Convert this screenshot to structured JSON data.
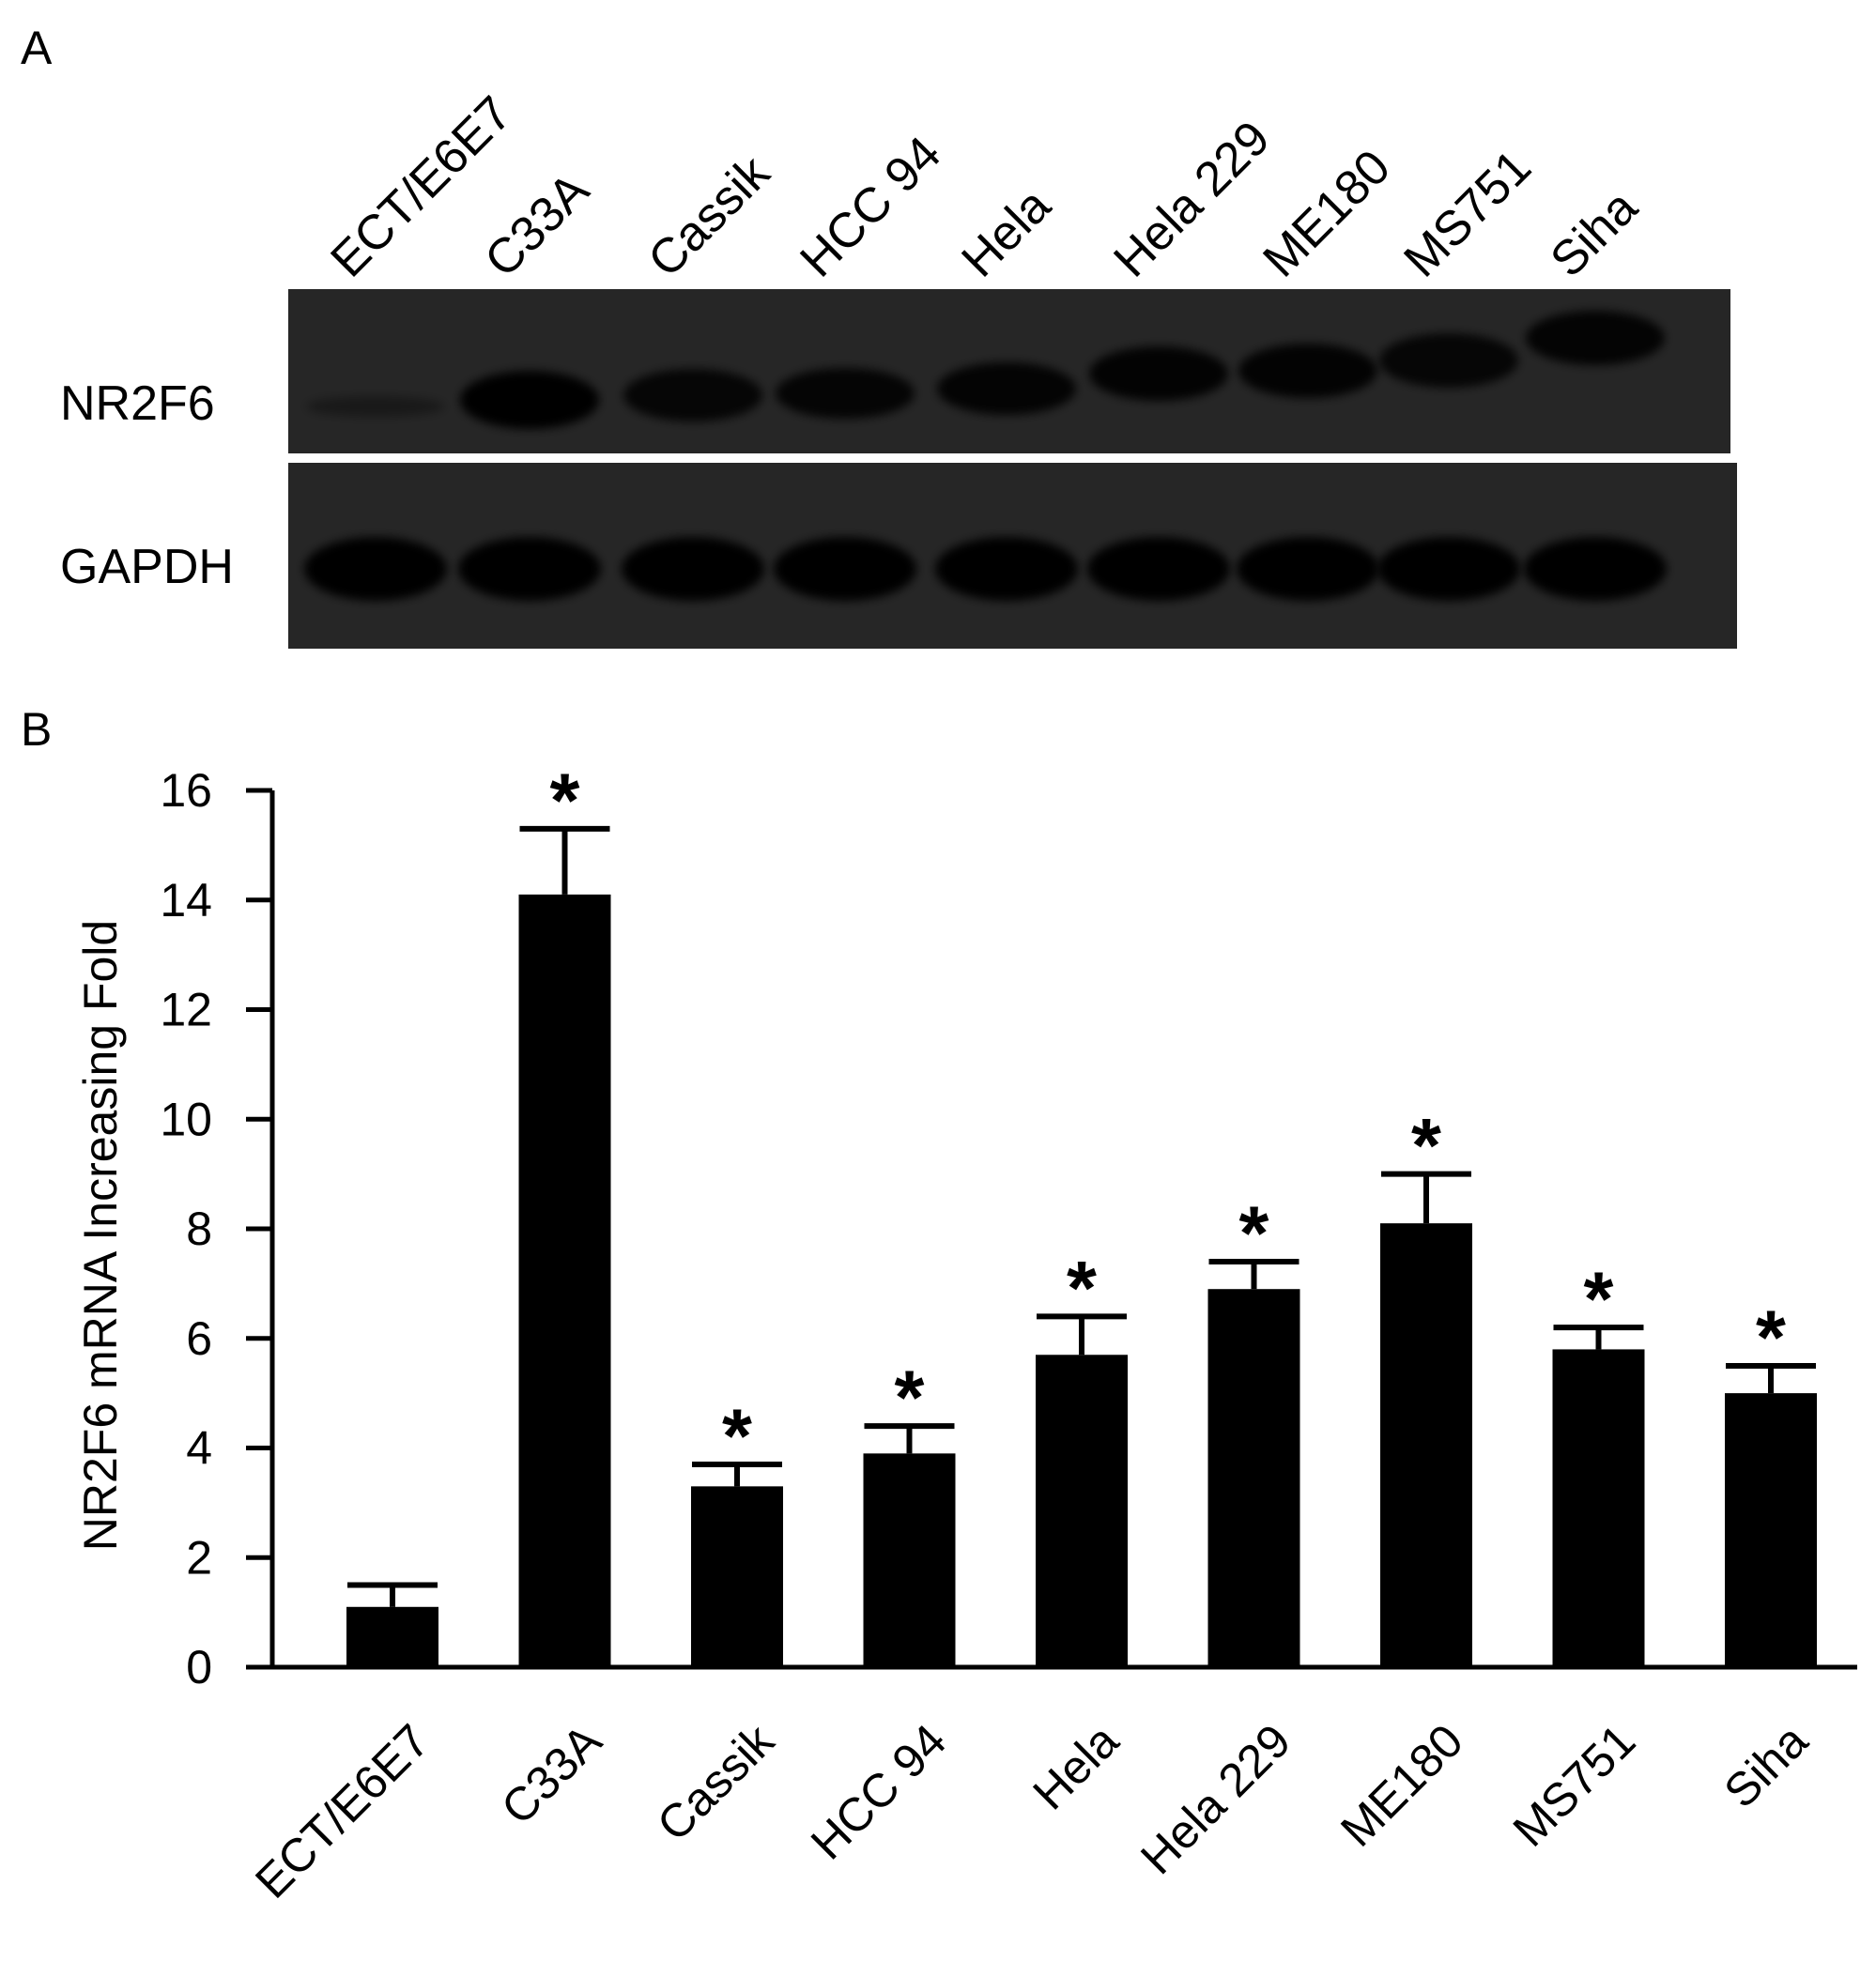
{
  "panels": {
    "a": "A",
    "b": "B"
  },
  "western_blot": {
    "lanes": [
      "ECT/E6E7",
      "C33A",
      "Cassik",
      "HCC 94",
      "Hela",
      "Hela 229",
      "ME180",
      "MS751",
      "Siha"
    ],
    "rows": [
      "NR2F6",
      "GAPDH"
    ]
  },
  "chart_data": {
    "type": "bar",
    "categories": [
      "ECT/E6E7",
      "C33A",
      "Cassik",
      "HCC 94",
      "Hela",
      "Hela 229",
      "ME180",
      "MS751",
      "Siha"
    ],
    "values": [
      1.1,
      14.1,
      3.3,
      3.9,
      5.7,
      6.9,
      8.1,
      5.8,
      5.0
    ],
    "errors": [
      0.4,
      1.2,
      0.4,
      0.5,
      0.7,
      0.5,
      0.9,
      0.4,
      0.5
    ],
    "significance": [
      "",
      "*",
      "*",
      "*",
      "*",
      "*",
      "*",
      "*",
      "*"
    ],
    "ylabel": "NR2F6 mRNA Increasing Fold",
    "xlabel": "",
    "ylim": [
      0,
      16
    ],
    "yticks": [
      0,
      2,
      4,
      6,
      8,
      10,
      12,
      14,
      16
    ],
    "bar_color": "#000000",
    "grid": false
  }
}
